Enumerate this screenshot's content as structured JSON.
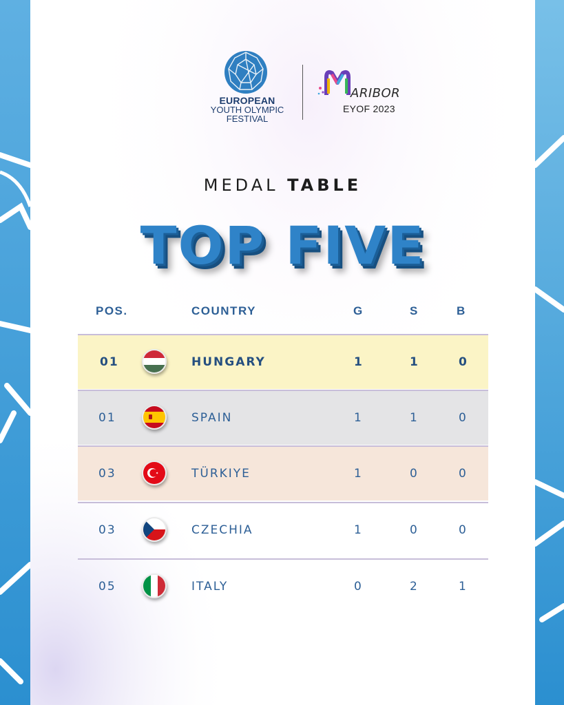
{
  "header": {
    "eyof_line1": "EUROPEAN",
    "eyof_line2": "YOUTH OLYMPIC",
    "eyof_line3": "FESTIVAL",
    "maribor_word": "ARIBOR",
    "maribor_sub": "EYOF 2023"
  },
  "title": {
    "medal": "MEDAL",
    "table": "TABLE",
    "headline": "TOP FIVE"
  },
  "table": {
    "headers": {
      "pos": "POS.",
      "country": "COUNTRY",
      "g": "G",
      "s": "S",
      "b": "B"
    },
    "rows": [
      {
        "pos": "01",
        "country": "HUNGARY",
        "flag": "hungary-flag",
        "g": "1",
        "s": "1",
        "b": "0",
        "bg": "#fbf4c6"
      },
      {
        "pos": "01",
        "country": "SPAIN",
        "flag": "spain-flag",
        "g": "1",
        "s": "1",
        "b": "0",
        "bg": "#e4e4e6"
      },
      {
        "pos": "03",
        "country": "TÜRKIYE",
        "flag": "turkiye-flag",
        "g": "1",
        "s": "0",
        "b": "0",
        "bg": "#f6e6da"
      },
      {
        "pos": "03",
        "country": "CZECHIA",
        "flag": "czechia-flag",
        "g": "1",
        "s": "0",
        "b": "0",
        "bg": "transparent"
      },
      {
        "pos": "05",
        "country": "ITALY",
        "flag": "italy-flag",
        "g": "0",
        "s": "2",
        "b": "1",
        "bg": "transparent"
      }
    ]
  },
  "colors": {
    "accent_blue": "#2f83c8",
    "text_blue": "#2d5f96",
    "gold_row": "#fbf4c6",
    "silver_row": "#e4e4e6",
    "bronze_row": "#f6e6da"
  }
}
